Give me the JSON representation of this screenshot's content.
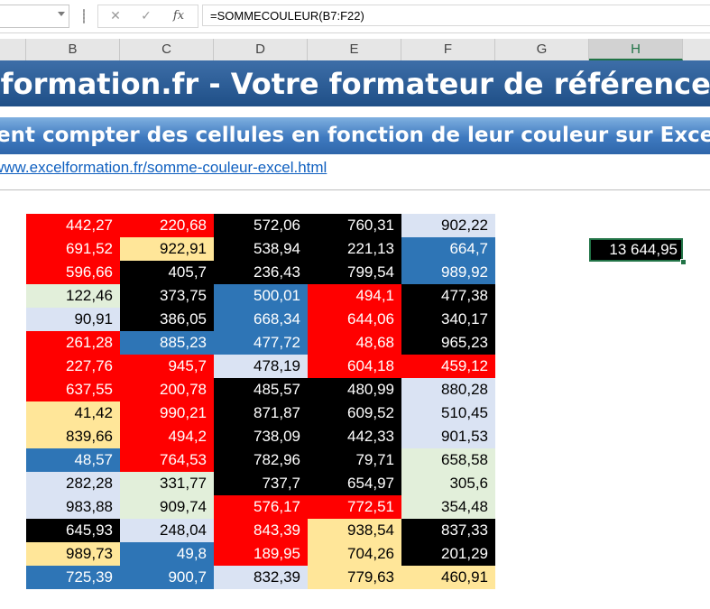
{
  "formula_bar": {
    "name_box": "",
    "cancel_icon": "✕",
    "enter_icon": "✓",
    "fx_label": "fx",
    "formula": "=SOMMECOULEUR(B7:F22)"
  },
  "column_headers": [
    "B",
    "C",
    "D",
    "E",
    "F",
    "G",
    "H"
  ],
  "selected_column": "H",
  "title": "elformation.fr - Votre formateur de référence sur E",
  "subtitle": "ment compter des cellules en fonction de leur couleur sur Excel",
  "link": "www.excelformation.fr/somme-couleur-excel.html",
  "colors": {
    "red": "#ff0000",
    "black": "#000000",
    "blue": "#2e75b6",
    "lavender": "#dae3f3",
    "cream": "#ffe699",
    "green": "#e2efda",
    "title_band": "#1f4f87",
    "subtitle_band": "#3e79bf",
    "selection": "#217346"
  },
  "rows": [
    [
      {
        "v": "442,27",
        "c": "red"
      },
      {
        "v": "220,68",
        "c": "red"
      },
      {
        "v": "572,06",
        "c": "black"
      },
      {
        "v": "760,31",
        "c": "black"
      },
      {
        "v": "902,22",
        "c": "lav"
      }
    ],
    [
      {
        "v": "691,52",
        "c": "red"
      },
      {
        "v": "922,91",
        "c": "cream"
      },
      {
        "v": "538,94",
        "c": "black"
      },
      {
        "v": "221,13",
        "c": "black"
      },
      {
        "v": "664,7",
        "c": "blue"
      }
    ],
    [
      {
        "v": "596,66",
        "c": "red"
      },
      {
        "v": "405,7",
        "c": "black"
      },
      {
        "v": "236,43",
        "c": "black"
      },
      {
        "v": "799,54",
        "c": "black"
      },
      {
        "v": "989,92",
        "c": "blue"
      }
    ],
    [
      {
        "v": "122,46",
        "c": "green"
      },
      {
        "v": "373,75",
        "c": "black"
      },
      {
        "v": "500,01",
        "c": "blue"
      },
      {
        "v": "494,1",
        "c": "red"
      },
      {
        "v": "477,38",
        "c": "black"
      }
    ],
    [
      {
        "v": "90,91",
        "c": "lav"
      },
      {
        "v": "386,05",
        "c": "black"
      },
      {
        "v": "668,34",
        "c": "blue"
      },
      {
        "v": "644,06",
        "c": "red"
      },
      {
        "v": "340,17",
        "c": "black"
      }
    ],
    [
      {
        "v": "261,28",
        "c": "red"
      },
      {
        "v": "885,23",
        "c": "blue"
      },
      {
        "v": "477,72",
        "c": "blue"
      },
      {
        "v": "48,68",
        "c": "red"
      },
      {
        "v": "965,23",
        "c": "black"
      }
    ],
    [
      {
        "v": "227,76",
        "c": "red"
      },
      {
        "v": "945,7",
        "c": "red"
      },
      {
        "v": "478,19",
        "c": "lav"
      },
      {
        "v": "604,18",
        "c": "red"
      },
      {
        "v": "459,12",
        "c": "red"
      }
    ],
    [
      {
        "v": "637,55",
        "c": "red"
      },
      {
        "v": "200,78",
        "c": "red"
      },
      {
        "v": "485,57",
        "c": "black"
      },
      {
        "v": "480,99",
        "c": "black"
      },
      {
        "v": "880,28",
        "c": "lav"
      }
    ],
    [
      {
        "v": "41,42",
        "c": "cream"
      },
      {
        "v": "990,21",
        "c": "red"
      },
      {
        "v": "871,87",
        "c": "black"
      },
      {
        "v": "609,52",
        "c": "black"
      },
      {
        "v": "510,45",
        "c": "lav"
      }
    ],
    [
      {
        "v": "839,66",
        "c": "cream"
      },
      {
        "v": "494,2",
        "c": "red"
      },
      {
        "v": "738,09",
        "c": "black"
      },
      {
        "v": "442,33",
        "c": "black"
      },
      {
        "v": "901,53",
        "c": "lav"
      }
    ],
    [
      {
        "v": "48,57",
        "c": "blue"
      },
      {
        "v": "764,53",
        "c": "red"
      },
      {
        "v": "782,96",
        "c": "black"
      },
      {
        "v": "79,71",
        "c": "black"
      },
      {
        "v": "658,58",
        "c": "green"
      }
    ],
    [
      {
        "v": "282,28",
        "c": "lav"
      },
      {
        "v": "331,77",
        "c": "green"
      },
      {
        "v": "737,7",
        "c": "black"
      },
      {
        "v": "654,97",
        "c": "black"
      },
      {
        "v": "305,6",
        "c": "green"
      }
    ],
    [
      {
        "v": "983,88",
        "c": "lav"
      },
      {
        "v": "909,74",
        "c": "green"
      },
      {
        "v": "576,17",
        "c": "red"
      },
      {
        "v": "772,51",
        "c": "red"
      },
      {
        "v": "354,48",
        "c": "green"
      }
    ],
    [
      {
        "v": "645,93",
        "c": "black"
      },
      {
        "v": "248,04",
        "c": "lav"
      },
      {
        "v": "843,39",
        "c": "red"
      },
      {
        "v": "938,54",
        "c": "cream"
      },
      {
        "v": "837,33",
        "c": "black"
      }
    ],
    [
      {
        "v": "989,73",
        "c": "cream"
      },
      {
        "v": "49,8",
        "c": "blue"
      },
      {
        "v": "189,95",
        "c": "red"
      },
      {
        "v": "704,26",
        "c": "cream"
      },
      {
        "v": "201,29",
        "c": "black"
      }
    ],
    [
      {
        "v": "725,39",
        "c": "blue"
      },
      {
        "v": "900,7",
        "c": "blue"
      },
      {
        "v": "832,39",
        "c": "lav"
      },
      {
        "v": "779,63",
        "c": "cream"
      },
      {
        "v": "460,91",
        "c": "cream"
      }
    ]
  ],
  "result": "13 644,95"
}
